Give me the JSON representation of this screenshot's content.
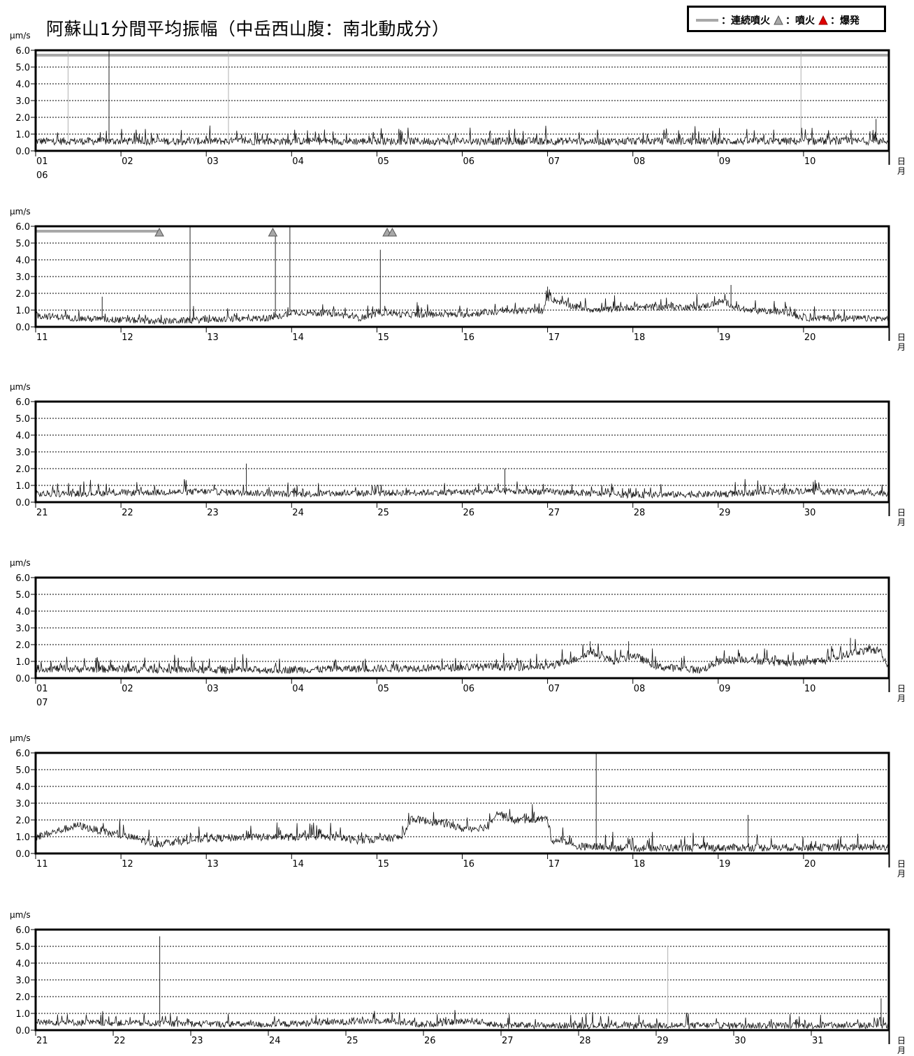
{
  "title": "阿蘇山1分間平均振幅（中岳西山腹：南北動成分）",
  "legend": {
    "continuous_label": "：連続噴火",
    "eruption_label": "：噴火",
    "explosion_label": "：爆発",
    "continuous_color": "#a8a8a8",
    "eruption_color": "#a8a8a8",
    "explosion_color": "#e00000"
  },
  "chart_data": [
    {
      "type": "line",
      "yunit": "μm/s",
      "xunit": [
        "日",
        "月"
      ],
      "ylim": [
        0,
        6
      ],
      "yticks": [
        "6.0",
        "5.0",
        "4.0",
        "3.0",
        "2.0",
        "1.0",
        "0.0"
      ],
      "grid": true,
      "xrange_days": [
        1,
        11
      ],
      "xticks": [
        {
          "day": 1,
          "label": "01",
          "sub": "06"
        },
        {
          "day": 2,
          "label": "02"
        },
        {
          "day": 3,
          "label": "03"
        },
        {
          "day": 4,
          "label": "04"
        },
        {
          "day": 5,
          "label": "05"
        },
        {
          "day": 6,
          "label": "06"
        },
        {
          "day": 7,
          "label": "07"
        },
        {
          "day": 8,
          "label": "08"
        },
        {
          "day": 9,
          "label": "09"
        },
        {
          "day": 10,
          "label": "10"
        }
      ],
      "baseline": [
        [
          1.0,
          0.6
        ],
        [
          11.0,
          0.6
        ]
      ],
      "noise": 0.35,
      "spikes": [
        {
          "day": 1.38,
          "value": 6.0,
          "gray": true
        },
        {
          "day": 1.86,
          "value": 6.0
        },
        {
          "day": 3.26,
          "value": 6.0,
          "gray": true
        },
        {
          "day": 9.97,
          "value": 6.0,
          "gray": true
        },
        {
          "day": 10.85,
          "value": 1.9
        }
      ],
      "continuous_eruption": [
        [
          1.0,
          11.0
        ]
      ],
      "eruptions": []
    },
    {
      "type": "line",
      "yunit": "μm/s",
      "xunit": [
        "日",
        "月"
      ],
      "ylim": [
        0,
        6
      ],
      "yticks": [
        "6.0",
        "5.0",
        "4.0",
        "3.0",
        "2.0",
        "1.0",
        "0.0"
      ],
      "grid": true,
      "xrange_days": [
        11,
        21
      ],
      "xticks": [
        {
          "day": 11,
          "label": "11"
        },
        {
          "day": 12,
          "label": "12"
        },
        {
          "day": 13,
          "label": "13"
        },
        {
          "day": 14,
          "label": "14"
        },
        {
          "day": 15,
          "label": "15"
        },
        {
          "day": 16,
          "label": "16"
        },
        {
          "day": 17,
          "label": "17"
        },
        {
          "day": 18,
          "label": "18"
        },
        {
          "day": 19,
          "label": "19"
        },
        {
          "day": 20,
          "label": "20"
        }
      ],
      "baseline": [
        [
          11.0,
          0.7
        ],
        [
          11.6,
          0.5
        ],
        [
          12.5,
          0.35
        ],
        [
          13.0,
          0.45
        ],
        [
          13.8,
          0.55
        ],
        [
          14.0,
          0.9
        ],
        [
          14.5,
          0.8
        ],
        [
          14.8,
          0.55
        ],
        [
          15.1,
          0.9
        ],
        [
          15.3,
          0.75
        ],
        [
          16.0,
          0.75
        ],
        [
          16.5,
          0.95
        ],
        [
          16.95,
          1.0
        ],
        [
          17.0,
          1.75
        ],
        [
          17.3,
          1.25
        ],
        [
          17.6,
          1.0
        ],
        [
          18.0,
          1.2
        ],
        [
          18.8,
          1.2
        ],
        [
          19.05,
          1.55
        ],
        [
          19.3,
          1.0
        ],
        [
          19.8,
          0.9
        ],
        [
          20.0,
          0.55
        ],
        [
          21.0,
          0.5
        ]
      ],
      "noise": 0.3,
      "spikes": [
        {
          "day": 11.78,
          "value": 1.8
        },
        {
          "day": 12.81,
          "value": 6.0
        },
        {
          "day": 13.81,
          "value": 5.6
        },
        {
          "day": 13.98,
          "value": 6.0
        },
        {
          "day": 15.04,
          "value": 4.6
        },
        {
          "day": 17.0,
          "value": 2.4
        },
        {
          "day": 19.15,
          "value": 2.5
        }
      ],
      "continuous_eruption": [
        [
          11.0,
          12.45
        ]
      ],
      "eruptions": [
        {
          "day": 12.45
        },
        {
          "day": 13.78
        },
        {
          "day": 15.12
        },
        {
          "day": 15.18
        }
      ]
    },
    {
      "type": "line",
      "yunit": "μm/s",
      "xunit": [
        "日",
        "月"
      ],
      "ylim": [
        0,
        6
      ],
      "yticks": [
        "6.0",
        "5.0",
        "4.0",
        "3.0",
        "2.0",
        "1.0",
        "0.0"
      ],
      "grid": true,
      "xrange_days": [
        21,
        31
      ],
      "xticks": [
        {
          "day": 21,
          "label": "21"
        },
        {
          "day": 22,
          "label": "22"
        },
        {
          "day": 23,
          "label": "23"
        },
        {
          "day": 24,
          "label": "24"
        },
        {
          "day": 25,
          "label": "25"
        },
        {
          "day": 26,
          "label": "26"
        },
        {
          "day": 27,
          "label": "27"
        },
        {
          "day": 28,
          "label": "28"
        },
        {
          "day": 29,
          "label": "29"
        },
        {
          "day": 30,
          "label": "30"
        }
      ],
      "baseline": [
        [
          21.0,
          0.5
        ],
        [
          23.0,
          0.65
        ],
        [
          24.0,
          0.5
        ],
        [
          26.5,
          0.65
        ],
        [
          27.0,
          0.65
        ],
        [
          28.0,
          0.45
        ],
        [
          29.0,
          0.5
        ],
        [
          30.0,
          0.7
        ],
        [
          31.0,
          0.55
        ]
      ],
      "noise": 0.3,
      "spikes": [
        {
          "day": 23.47,
          "value": 2.3
        },
        {
          "day": 26.5,
          "value": 2.0
        }
      ],
      "continuous_eruption": [],
      "eruptions": []
    },
    {
      "type": "line",
      "yunit": "μm/s",
      "xunit": [
        "日",
        "月"
      ],
      "ylim": [
        0,
        6
      ],
      "yticks": [
        "6.0",
        "5.0",
        "4.0",
        "3.0",
        "2.0",
        "1.0",
        "0.0"
      ],
      "grid": true,
      "xrange_days": [
        1,
        11
      ],
      "xticks": [
        {
          "day": 1,
          "label": "01",
          "sub": "07"
        },
        {
          "day": 2,
          "label": "02"
        },
        {
          "day": 3,
          "label": "03"
        },
        {
          "day": 4,
          "label": "04"
        },
        {
          "day": 5,
          "label": "05"
        },
        {
          "day": 6,
          "label": "06"
        },
        {
          "day": 7,
          "label": "07"
        },
        {
          "day": 8,
          "label": "08"
        },
        {
          "day": 9,
          "label": "09"
        },
        {
          "day": 10,
          "label": "10"
        }
      ],
      "baseline": [
        [
          1.0,
          0.6
        ],
        [
          3.5,
          0.5
        ],
        [
          5.0,
          0.6
        ],
        [
          6.5,
          0.7
        ],
        [
          7.0,
          0.7
        ],
        [
          7.3,
          1.1
        ],
        [
          7.5,
          1.6
        ],
        [
          7.8,
          1.0
        ],
        [
          8.0,
          1.4
        ],
        [
          8.3,
          0.7
        ],
        [
          8.8,
          0.5
        ],
        [
          9.0,
          1.0
        ],
        [
          9.3,
          1.15
        ],
        [
          9.8,
          0.9
        ],
        [
          10.3,
          1.1
        ],
        [
          10.6,
          1.6
        ],
        [
          10.9,
          1.7
        ],
        [
          11.0,
          0.6
        ]
      ],
      "noise": 0.35,
      "spikes": [
        {
          "day": 7.5,
          "value": 2.2
        },
        {
          "day": 7.95,
          "value": 2.2
        },
        {
          "day": 10.55,
          "value": 2.4
        }
      ],
      "continuous_eruption": [],
      "eruptions": []
    },
    {
      "type": "line",
      "yunit": "μm/s",
      "xunit": [
        "日",
        "月"
      ],
      "ylim": [
        0,
        6
      ],
      "yticks": [
        "6.0",
        "5.0",
        "4.0",
        "3.0",
        "2.0",
        "1.0",
        "0.0"
      ],
      "grid": true,
      "xrange_days": [
        11,
        21
      ],
      "xticks": [
        {
          "day": 11,
          "label": "11"
        },
        {
          "day": 12,
          "label": "12"
        },
        {
          "day": 13,
          "label": "13"
        },
        {
          "day": 14,
          "label": "14"
        },
        {
          "day": 15,
          "label": "15"
        },
        {
          "day": 16,
          "label": "16"
        },
        {
          "day": 17,
          "label": "17"
        },
        {
          "day": 18,
          "label": "18"
        },
        {
          "day": 19,
          "label": "19"
        },
        {
          "day": 20,
          "label": "20"
        }
      ],
      "baseline": [
        [
          11.0,
          1.0
        ],
        [
          11.5,
          1.7
        ],
        [
          11.8,
          1.3
        ],
        [
          12.2,
          0.9
        ],
        [
          12.4,
          0.6
        ],
        [
          13.0,
          0.9
        ],
        [
          13.5,
          1.0
        ],
        [
          14.5,
          1.0
        ],
        [
          14.8,
          0.8
        ],
        [
          15.3,
          1.0
        ],
        [
          15.4,
          2.1
        ],
        [
          15.8,
          1.8
        ],
        [
          16.0,
          1.5
        ],
        [
          16.3,
          1.6
        ],
        [
          16.4,
          2.5
        ],
        [
          16.6,
          2.0
        ],
        [
          17.0,
          2.1
        ],
        [
          17.05,
          0.8
        ],
        [
          17.2,
          0.8
        ],
        [
          17.3,
          0.45
        ],
        [
          18.0,
          0.35
        ],
        [
          21.0,
          0.4
        ]
      ],
      "noise": 0.35,
      "spikes": [
        {
          "day": 17.57,
          "value": 6.0
        },
        {
          "day": 19.35,
          "value": 2.3
        }
      ],
      "continuous_eruption": [],
      "eruptions": []
    },
    {
      "type": "line",
      "yunit": "μm/s",
      "xunit": [
        "日",
        "月"
      ],
      "ylim": [
        0,
        6
      ],
      "yticks": [
        "6.0",
        "5.0",
        "4.0",
        "3.0",
        "2.0",
        "1.0",
        "0.0"
      ],
      "grid": true,
      "xrange_days": [
        21,
        32
      ],
      "xticks": [
        {
          "day": 21,
          "label": "21"
        },
        {
          "day": 22,
          "label": "22"
        },
        {
          "day": 23,
          "label": "23"
        },
        {
          "day": 24,
          "label": "24"
        },
        {
          "day": 25,
          "label": "25"
        },
        {
          "day": 26,
          "label": "26"
        },
        {
          "day": 27,
          "label": "27"
        },
        {
          "day": 28,
          "label": "28"
        },
        {
          "day": 29,
          "label": "29"
        },
        {
          "day": 30,
          "label": "30"
        },
        {
          "day": 31,
          "label": "31"
        }
      ],
      "baseline": [
        [
          21.0,
          0.5
        ],
        [
          24.0,
          0.35
        ],
        [
          25.5,
          0.6
        ],
        [
          26.0,
          0.35
        ],
        [
          26.6,
          0.6
        ],
        [
          27.0,
          0.3
        ],
        [
          32.0,
          0.3
        ]
      ],
      "noise": 0.3,
      "spikes": [
        {
          "day": 22.6,
          "value": 5.6
        },
        {
          "day": 29.15,
          "value": 5.0,
          "gray": true
        },
        {
          "day": 31.9,
          "value": 1.9
        }
      ],
      "continuous_eruption": [],
      "eruptions": []
    }
  ]
}
